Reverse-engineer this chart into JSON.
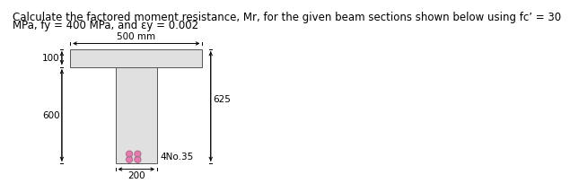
{
  "title_line1": "Calculate the factored moment resistance, Mr, for the given beam sections shown below using fc’ = 30",
  "title_line2": "MPa, fy = 400 MPa, and εy = 0.002",
  "title_fontsize": 8.5,
  "background_color": "#ffffff",
  "flange_color": "#e0e0e0",
  "web_color": "#e0e0e0",
  "rebar_color": "#e87ab0",
  "label_500": "500 mm",
  "label_200": "200",
  "label_100": "100",
  "label_600": "600",
  "label_625": "625",
  "label_rebar": "4No.35",
  "dim_fontsize": 7.5
}
